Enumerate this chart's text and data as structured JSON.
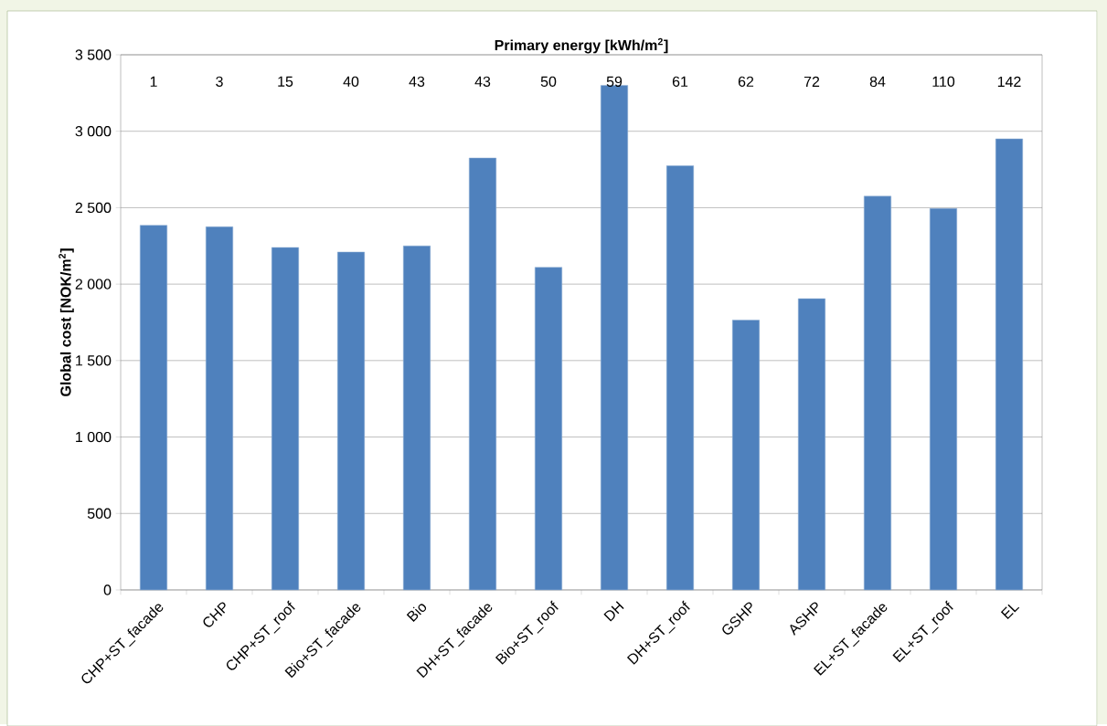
{
  "chart_data": {
    "type": "bar",
    "ylabel": "Global cost [NOK/m$^{2}$]",
    "x2label": "Primary energy [kWh/m$^{2}$]",
    "categories": [
      "CHP+ST_facade",
      "CHP",
      "CHP+ST_roof",
      "Bio+ST_facade",
      "Bio",
      "DH+ST_facade",
      "Bio+ST_roof",
      "DH",
      "DH+ST_roof",
      "GSHP",
      "ASHP",
      "EL+ST_facade",
      "EL+ST_roof",
      "EL"
    ],
    "values": [
      2385,
      2375,
      2240,
      2210,
      2250,
      2825,
      2110,
      3300,
      2775,
      1765,
      1905,
      2575,
      2495,
      2950
    ],
    "color": "#4f81bd",
    "ylim": [
      0,
      3500
    ],
    "yticks": [
      0,
      500,
      {
        "value": 1000,
        "label": "1 000"
      },
      {
        "value": 1500,
        "label": "1 500"
      },
      {
        "value": 2000,
        "label": "2 000"
      },
      {
        "value": 2500,
        "label": "2 500"
      },
      {
        "value": 3000,
        "label": "3 000"
      },
      {
        "value": 3500,
        "label": "3 500"
      }
    ],
    "grid": "y",
    "annotations": [
      "1",
      "3",
      "15",
      "40",
      "43",
      "43",
      "50",
      "59",
      "61",
      "62",
      "72",
      "84",
      "110",
      "142"
    ]
  }
}
